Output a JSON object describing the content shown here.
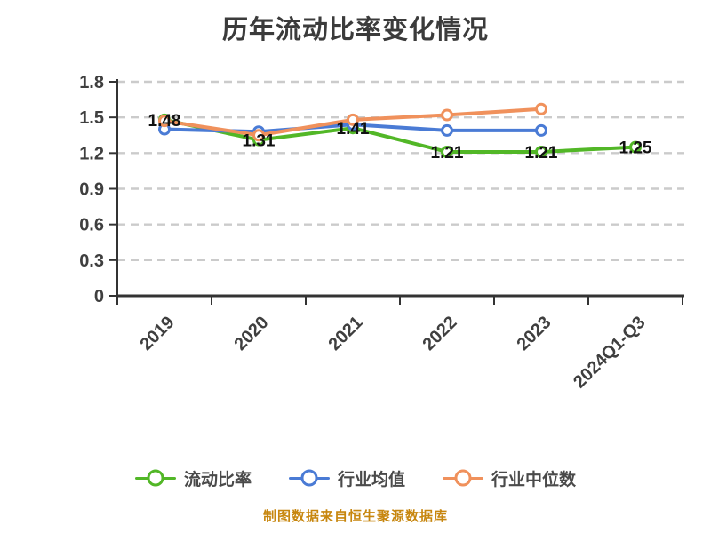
{
  "title": "历年流动比率变化情况",
  "footer": "制图数据来自恒生聚源数据库",
  "colors": {
    "title_text": "#3b3b3b",
    "axis_line": "#333333",
    "grid_line": "#cbcbcb",
    "tick_label": "#3f3f3f",
    "data_label": "#111111",
    "legend_text": "#4a4a4a",
    "footer_text": "#c7860e",
    "series_current_ratio": "#52b727",
    "series_industry_mean": "#4a7bd5",
    "series_industry_median": "#f0915c",
    "marker_fill": "#ffffff",
    "background": "#ffffff"
  },
  "chart_data": {
    "type": "line",
    "title": "历年流动比率变化情况",
    "categories": [
      "2019",
      "2020",
      "2021",
      "2022",
      "2023",
      "2024Q1-Q3"
    ],
    "series": [
      {
        "name": "流动比率",
        "key": "current-ratio",
        "color": "#52b727",
        "values": [
          1.48,
          1.31,
          1.41,
          1.21,
          1.21,
          1.25
        ],
        "labels": [
          "1.48",
          "1.31",
          "1.41",
          "1.21",
          "1.21",
          "1.25"
        ]
      },
      {
        "name": "行业均值",
        "key": "industry-mean",
        "color": "#4a7bd5",
        "values": [
          1.4,
          1.38,
          1.44,
          1.39,
          1.39,
          null
        ],
        "labels": null
      },
      {
        "name": "行业中位数",
        "key": "industry-median",
        "color": "#f0915c",
        "values": [
          1.47,
          1.35,
          1.48,
          1.52,
          1.57,
          null
        ],
        "labels": null
      }
    ],
    "xlabel": "",
    "ylabel": "",
    "ylim": [
      0,
      1.8
    ],
    "yticks": [
      0,
      0.3,
      0.6,
      0.9,
      1.2,
      1.5,
      1.8
    ],
    "grid": "horizontal-dashed",
    "legend_position": "bottom",
    "x_label_rotation_deg": 45
  }
}
